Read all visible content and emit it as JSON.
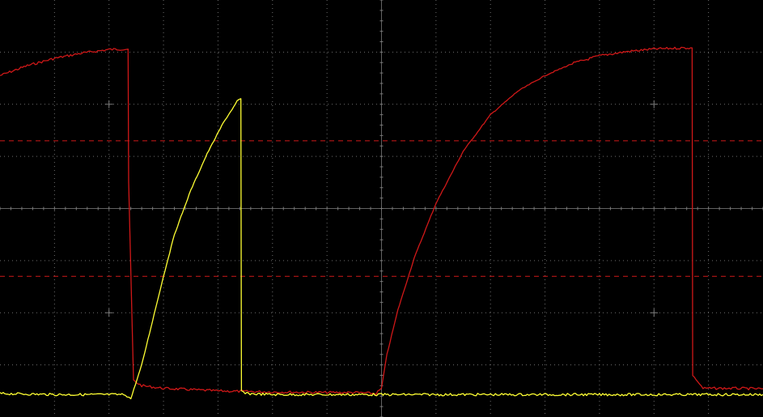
{
  "colors": {
    "background": "#000000",
    "grid": "#7a7a7a",
    "channel1": "#ffff33",
    "channel2": "#d01818",
    "cursor": "#d01818"
  },
  "display": {
    "divisions_x": 14,
    "divisions_y": 8,
    "subdivisions": 5,
    "cursors": [
      "horizontal-dashed-upper",
      "horizontal-dashed-lower"
    ],
    "labels": []
  },
  "chart_data": {
    "type": "line",
    "title": "",
    "xlabel": "",
    "ylabel": "",
    "xlim": [
      0,
      14
    ],
    "ylim": [
      -4,
      4
    ],
    "grid": true,
    "legend": "none",
    "cursors_y": [
      1.3,
      -1.3
    ],
    "series": [
      {
        "color": "#d01818",
        "x": [
          0.0,
          0.5,
          1.0,
          1.5,
          2.0,
          2.35,
          2.36,
          2.45,
          2.6,
          3.0,
          4.0,
          5.0,
          6.0,
          6.5,
          6.9,
          7.0,
          7.1,
          7.3,
          7.6,
          8.0,
          8.5,
          9.0,
          9.5,
          10.0,
          10.5,
          11.0,
          11.5,
          12.0,
          12.5,
          12.7,
          12.71,
          12.9,
          13.5,
          14.0
        ],
        "y": [
          2.55,
          2.74,
          2.88,
          2.98,
          3.05,
          3.06,
          0.5,
          -3.3,
          -3.4,
          -3.45,
          -3.5,
          -3.52,
          -3.53,
          -3.53,
          -3.55,
          -3.45,
          -2.8,
          -1.95,
          -0.95,
          0.1,
          1.1,
          1.8,
          2.25,
          2.55,
          2.78,
          2.93,
          3.01,
          3.06,
          3.08,
          3.08,
          -3.2,
          -3.45,
          -3.45,
          -3.46
        ]
      },
      {
        "color": "#ffff33",
        "x": [
          0.0,
          1.0,
          2.0,
          2.3,
          2.4,
          2.6,
          2.8,
          3.0,
          3.2,
          3.5,
          3.8,
          4.1,
          4.35,
          4.42,
          4.43,
          4.5,
          5.0,
          6.0,
          7.0,
          8.0,
          9.0,
          10.0,
          11.0,
          12.0,
          13.0,
          14.0
        ],
        "y": [
          -3.55,
          -3.57,
          -3.57,
          -3.57,
          -3.65,
          -3.0,
          -2.15,
          -1.3,
          -0.5,
          0.35,
          1.05,
          1.65,
          2.05,
          2.1,
          -3.5,
          -3.55,
          -3.57,
          -3.57,
          -3.57,
          -3.57,
          -3.57,
          -3.57,
          -3.57,
          -3.57,
          -3.57,
          -3.57
        ]
      }
    ]
  }
}
